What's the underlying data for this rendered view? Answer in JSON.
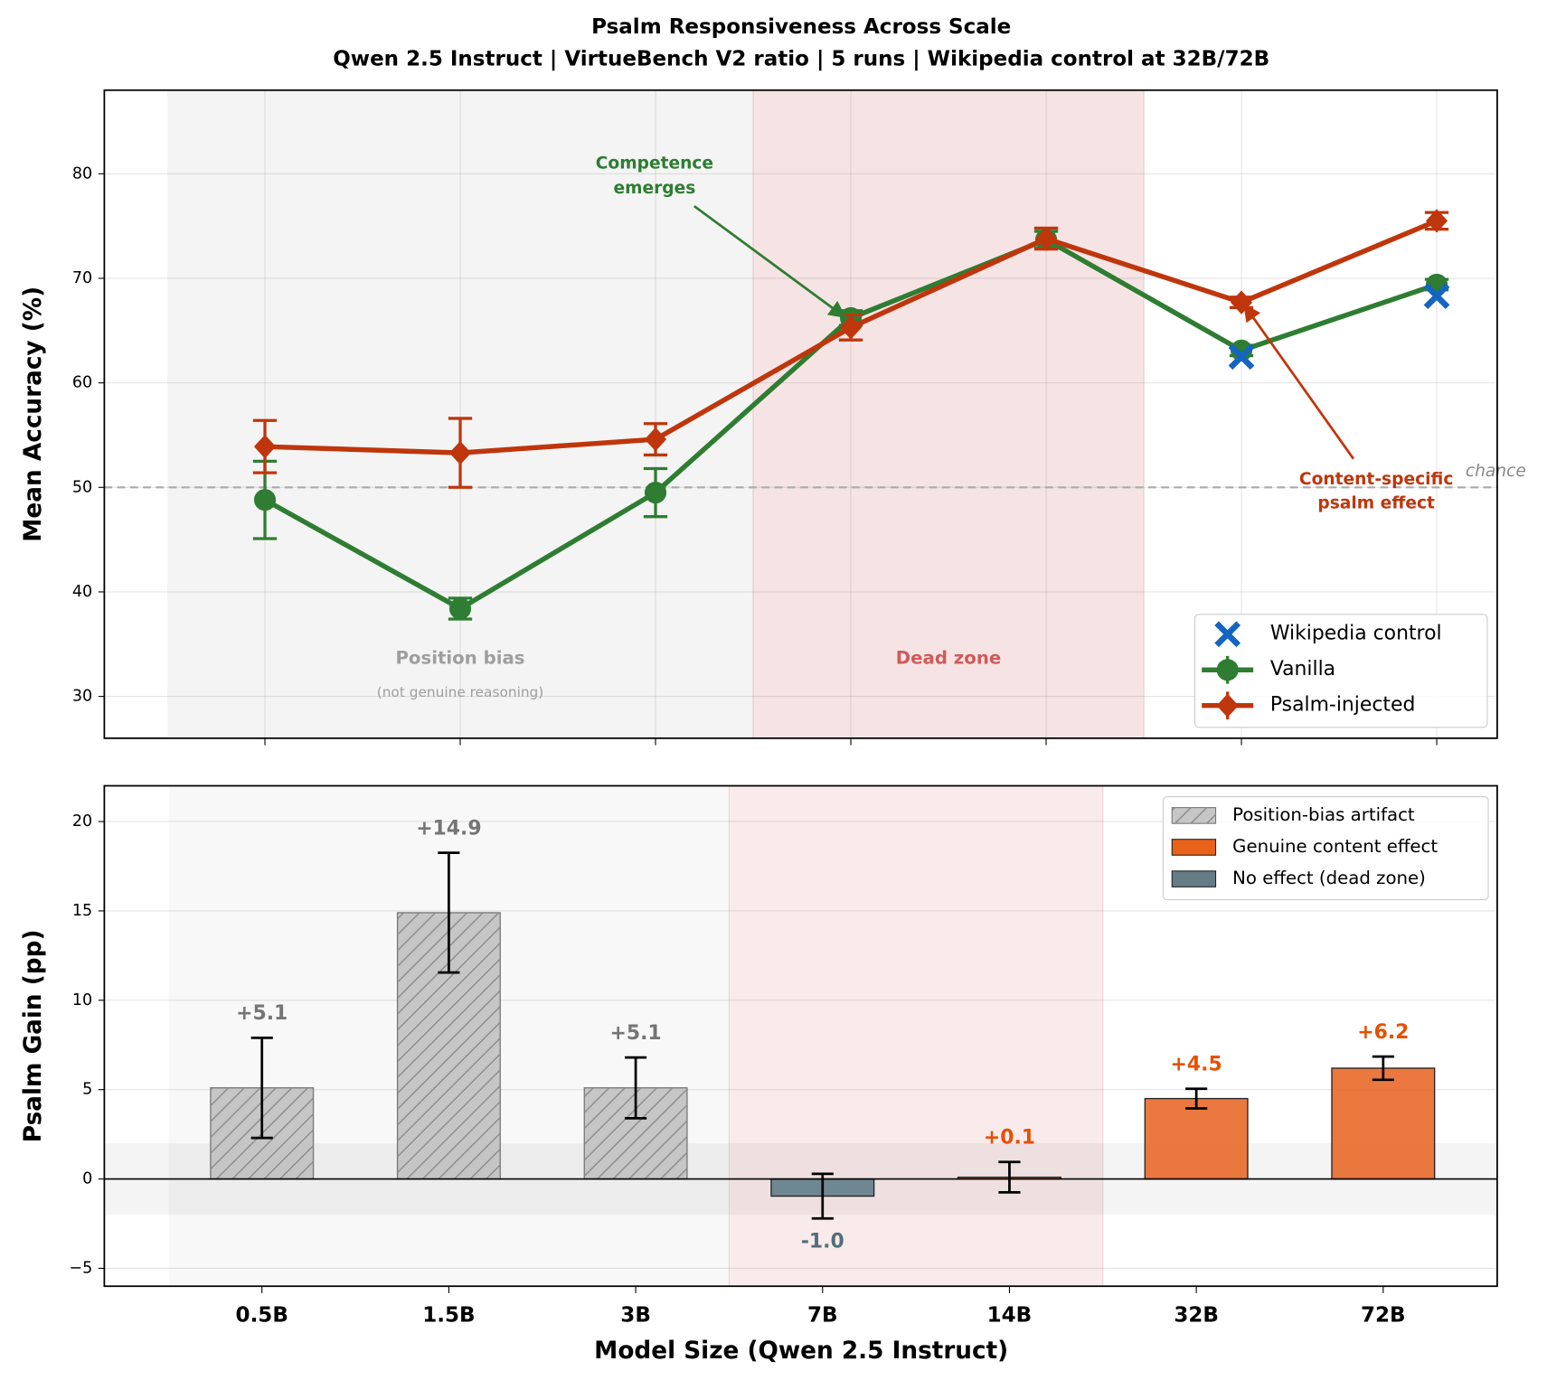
{
  "chart_data": [
    {
      "type": "line",
      "title": "Psalm Responsiveness Across Scale",
      "subtitle": "Qwen 2.5 Instruct  |  VirtueBench V2 ratio  |  5 runs  |  Wikipedia control at 32B/72B",
      "ylabel": "Mean Accuracy (%)",
      "ylim": [
        26,
        88
      ],
      "yticks": [
        30,
        40,
        50,
        60,
        70,
        80
      ],
      "grid": true,
      "reference_line": {
        "value": 50,
        "label": "chance"
      },
      "series": [
        {
          "name": "Wikipedia control",
          "color": "#1565c0",
          "marker": "x",
          "values": [
            null,
            null,
            null,
            null,
            null,
            62.5,
            68.3
          ]
        },
        {
          "name": "Vanilla",
          "color": "#2e7d32",
          "marker": "o",
          "values": [
            48.8,
            38.4,
            49.5,
            66.2,
            73.7,
            63.1,
            69.4
          ],
          "errors": [
            3.7,
            1.0,
            2.3,
            0.7,
            0.8,
            0.5,
            0.5
          ]
        },
        {
          "name": "Psalm-injected",
          "color": "#bf360c",
          "marker": "D",
          "values": [
            53.9,
            53.3,
            54.6,
            65.3,
            73.8,
            67.7,
            75.5
          ],
          "errors": [
            2.5,
            3.3,
            1.5,
            1.2,
            1.0,
            0.5,
            0.8
          ]
        }
      ],
      "regions": [
        {
          "label": "Position bias",
          "sublabel": "(not genuine reasoning)",
          "color": "#9e9e9e"
        },
        {
          "label": "Dead zone",
          "color": "#d05a5a"
        }
      ],
      "annotations": [
        {
          "text": [
            "Competence",
            "emerges"
          ],
          "color": "#2e7d32"
        },
        {
          "text": [
            "Content-specific",
            "psalm effect"
          ],
          "color": "#bf360c"
        }
      ],
      "legend": "lower right"
    },
    {
      "type": "bar",
      "xlabel": "Model Size (Qwen 2.5 Instruct)",
      "ylabel": "Psalm Gain (pp)",
      "categories": [
        "0.5B",
        "1.5B",
        "3B",
        "7B",
        "14B",
        "32B",
        "72B"
      ],
      "values": [
        5.1,
        14.9,
        5.1,
        -0.96,
        0.1,
        4.5,
        6.2
      ],
      "value_labels": [
        "+5.1",
        "+14.9",
        "+5.1",
        "-1.0",
        "+0.1",
        "+4.5",
        "+6.2"
      ],
      "errors": [
        2.8,
        3.35,
        1.7,
        1.25,
        0.85,
        0.55,
        0.65
      ],
      "colors": [
        "#c0c0c0",
        "#c0c0c0",
        "#c0c0c0",
        "#607d8b",
        "#e8692a",
        "#e8692a",
        "#e8692a"
      ],
      "hatch": [
        true,
        true,
        true,
        false,
        false,
        false,
        false
      ],
      "label_colors": [
        "#757575",
        "#757575",
        "#757575",
        "#546e7a",
        "#e65100",
        "#e65100",
        "#e65100"
      ],
      "ylim": [
        -6,
        22
      ],
      "yticks": [
        {
          "value": -5,
          "label": "−5"
        },
        0,
        5,
        10,
        15,
        20
      ],
      "grid": true,
      "neutral_band": [
        -2,
        2
      ],
      "legend_entries": [
        {
          "label": "Position-bias artifact",
          "color": "#c0c0c0",
          "hatch": true
        },
        {
          "label": "Genuine content effect",
          "color": "#e65100",
          "hatch": false
        },
        {
          "label": "No effect (dead zone)",
          "color": "#546e7a",
          "hatch": false
        }
      ],
      "legend": "upper right"
    }
  ]
}
